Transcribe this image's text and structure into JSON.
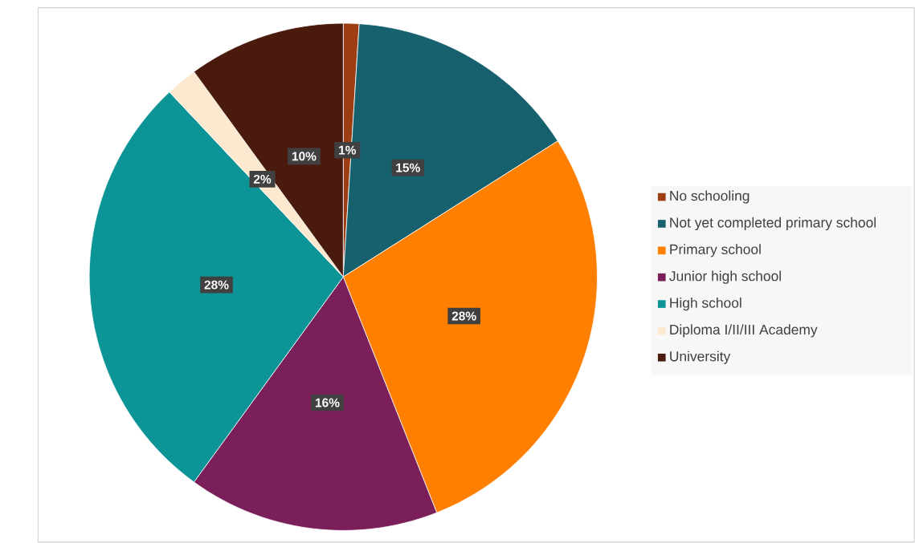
{
  "chart_data": {
    "type": "pie",
    "categories": [
      "No schooling",
      "Not yet completed primary school",
      "Primary school",
      "Junior high school",
      "High school",
      "Diploma I/II/III Academy",
      "University"
    ],
    "values": [
      1,
      15,
      28,
      16,
      28,
      2,
      10
    ],
    "value_labels": [
      "1%",
      "15%",
      "28%",
      "16%",
      "28%",
      "2%",
      "10%"
    ],
    "colors": [
      "#9c3d12",
      "#17606e",
      "#ff7f00",
      "#7b1f5a",
      "#0c9496",
      "#fde9d0",
      "#4a1a0c"
    ],
    "legend": "right"
  }
}
